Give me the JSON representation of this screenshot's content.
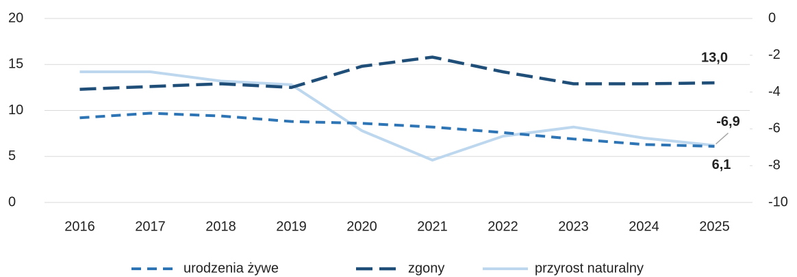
{
  "chart_data": {
    "type": "line",
    "categories": [
      "2016",
      "2017",
      "2018",
      "2019",
      "2020",
      "2021",
      "2022",
      "2023",
      "2024",
      "2025"
    ],
    "series": [
      {
        "name": "urodzenia żywe",
        "color": "#2e75b6",
        "line_style": "dash",
        "values": [
          9.2,
          9.7,
          9.4,
          8.8,
          8.6,
          8.2,
          7.6,
          6.9,
          6.3,
          6.1
        ],
        "value_labels": [
          null,
          null,
          null,
          null,
          null,
          null,
          null,
          null,
          null,
          "6,1"
        ]
      },
      {
        "name": "zgony",
        "color": "#1f4e79",
        "line_style": "longdash",
        "values": [
          12.3,
          12.6,
          12.9,
          12.5,
          14.8,
          15.8,
          14.2,
          12.9,
          12.9,
          13.0
        ],
        "value_labels": [
          null,
          null,
          null,
          null,
          null,
          null,
          null,
          null,
          null,
          "13,0"
        ]
      },
      {
        "name": "przyrost naturalny",
        "color": "#bdd7ee",
        "line_style": "solid",
        "axis": "y2",
        "values": [
          -2.9,
          -2.9,
          -3.4,
          -3.6,
          -6.1,
          -7.7,
          -6.4,
          -5.9,
          -6.5,
          -6.9
        ],
        "value_labels": [
          null,
          null,
          null,
          null,
          null,
          null,
          null,
          null,
          null,
          "-6,9"
        ]
      }
    ],
    "ylim": [
      0,
      20
    ],
    "yticks": [
      0,
      5,
      10,
      15,
      20
    ],
    "y2lim": [
      -10,
      0
    ],
    "y2ticks": [
      -10,
      -8,
      -6,
      -4,
      -2,
      0
    ],
    "grid": true,
    "legend": "bottom"
  }
}
